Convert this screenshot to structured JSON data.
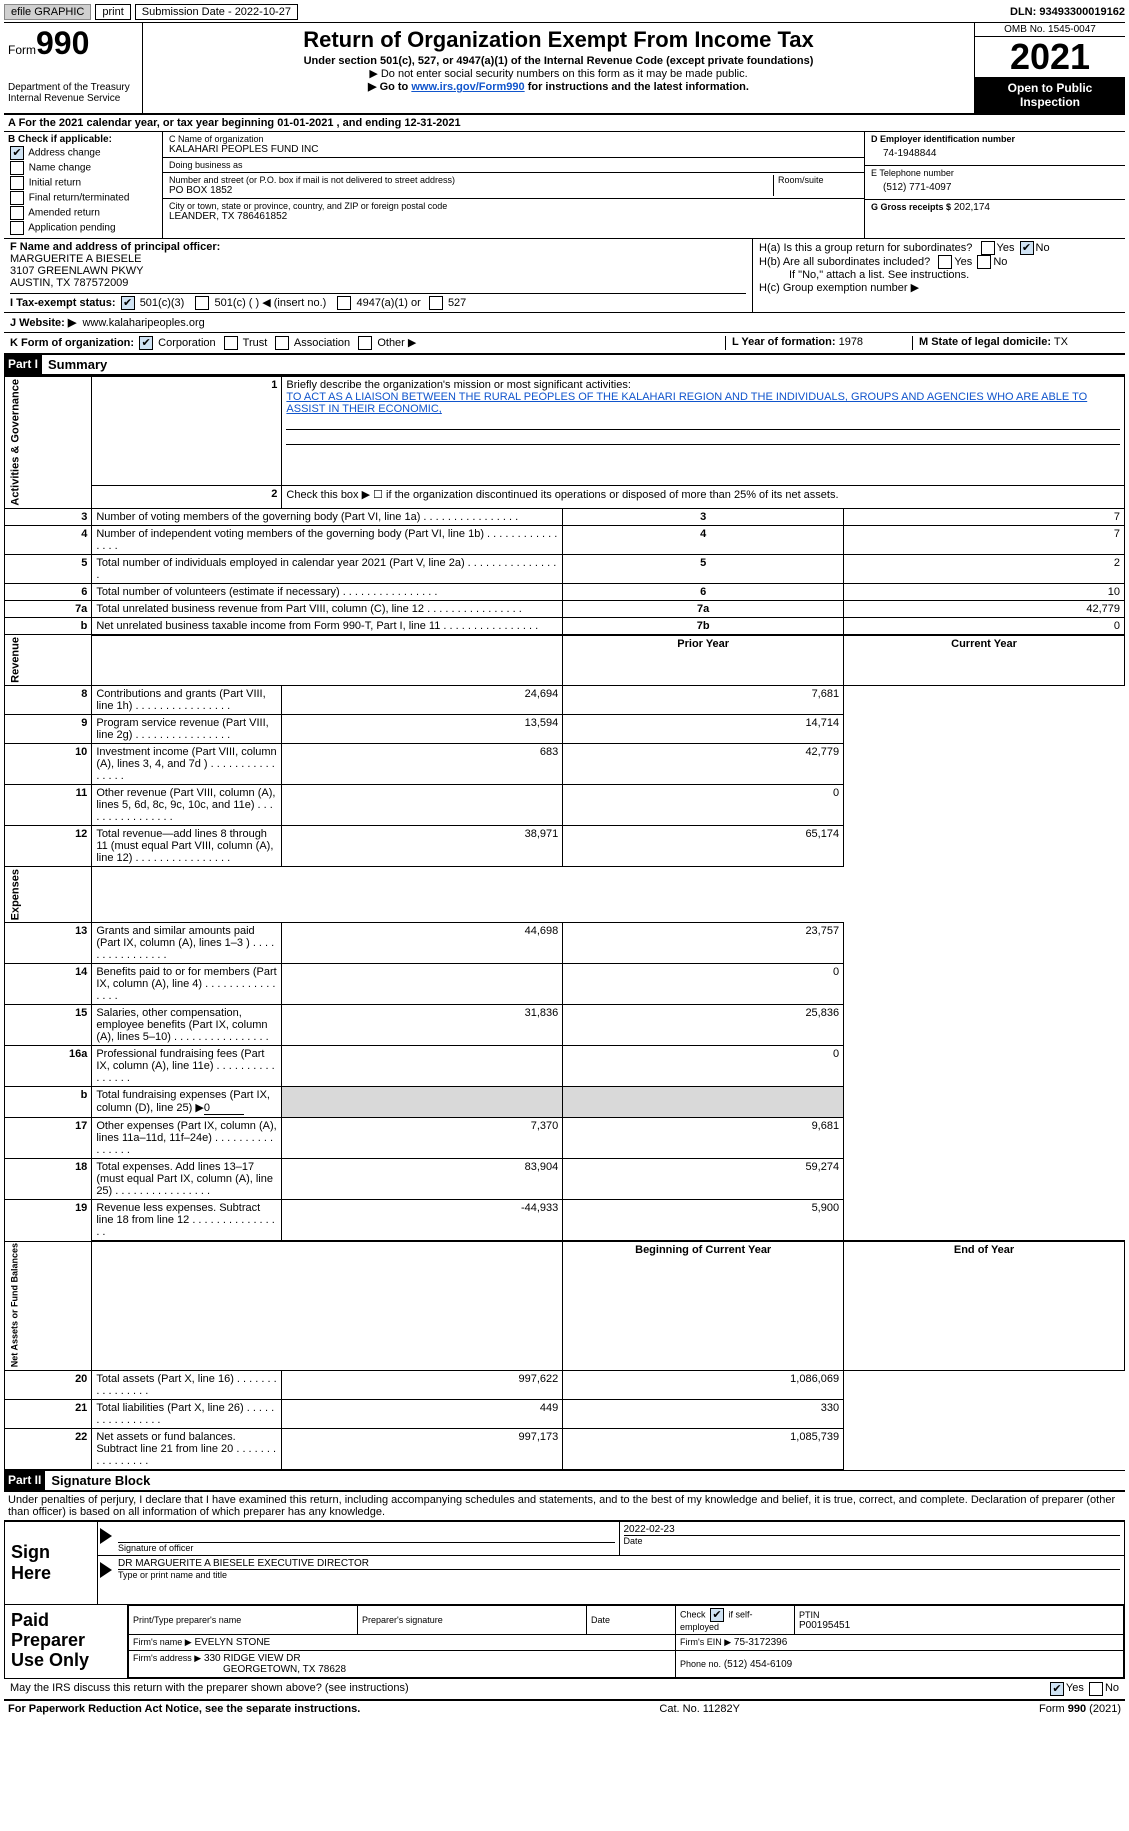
{
  "topbar": {
    "efile_label": "efile GRAPHIC",
    "print_btn": "print",
    "submission_label": "Submission Date - 2022-10-27",
    "dln_label": "DLN: 93493300019162"
  },
  "header": {
    "form_prefix": "Form",
    "form_number": "990",
    "dept": "Department of the Treasury",
    "irs": "Internal Revenue Service",
    "title": "Return of Organization Exempt From Income Tax",
    "subtitle": "Under section 501(c), 527, or 4947(a)(1) of the Internal Revenue Code (except private foundations)",
    "note1": "▶ Do not enter social security numbers on this form as it may be made public.",
    "note2_pre": "▶ Go to ",
    "note2_link": "www.irs.gov/Form990",
    "note2_post": " for instructions and the latest information.",
    "omb": "OMB No. 1545-0047",
    "year": "2021",
    "open_public": "Open to Public Inspection"
  },
  "row_a": "A For the 2021 calendar year, or tax year beginning 01-01-2021   , and ending 12-31-2021",
  "col_b": {
    "header": "B Check if applicable:",
    "opts": {
      "address_change": "Address change",
      "name_change": "Name change",
      "initial_return": "Initial return",
      "final_return": "Final return/terminated",
      "amended_return": "Amended return",
      "application_pending": "Application pending"
    }
  },
  "col_c": {
    "name_label": "C Name of organization",
    "name": "KALAHARI PEOPLES FUND INC",
    "dba_label": "Doing business as",
    "dba": "",
    "street_label": "Number and street (or P.O. box if mail is not delivered to street address)",
    "room_label": "Room/suite",
    "street": "PO BOX 1852",
    "city_label": "City or town, state or province, country, and ZIP or foreign postal code",
    "city": "LEANDER, TX  786461852"
  },
  "col_d": {
    "ein_label": "D Employer identification number",
    "ein": "74-1948844",
    "phone_label": "E Telephone number",
    "phone": "(512) 771-4097",
    "gross_label": "G Gross receipts $",
    "gross": "202,174"
  },
  "section_f": {
    "label": "F Name and address of principal officer:",
    "name": "MARGUERITE A BIESELE",
    "addr1": "3107 GREENLAWN PKWY",
    "addr2": "AUSTIN, TX  787572009"
  },
  "section_h": {
    "ha": "H(a)  Is this a group return for subordinates?",
    "hb": "H(b)  Are all subordinates included?",
    "hb_note": "If \"No,\" attach a list. See instructions.",
    "hc": "H(c)  Group exemption number ▶",
    "yes": "Yes",
    "no": "No"
  },
  "row_i": {
    "label": "I    Tax-exempt status:",
    "opt1": "501(c)(3)",
    "opt2": "501(c) (   ) ◀ (insert no.)",
    "opt3": "4947(a)(1) or",
    "opt4": "527"
  },
  "row_j": {
    "label": "J   Website: ▶",
    "value": "www.kalaharipeoples.org"
  },
  "row_k": {
    "label": "K Form of organization:",
    "corp": "Corporation",
    "trust": "Trust",
    "assoc": "Association",
    "other": "Other ▶",
    "l_label": "L Year of formation:",
    "l_value": "1978",
    "m_label": "M State of legal domicile:",
    "m_value": "TX"
  },
  "part1": {
    "label": "Part I",
    "title": "Summary"
  },
  "summary": {
    "line1_label": "Briefly describe the organization's mission or most significant activities:",
    "line1_text": "TO ACT AS A LIAISON BETWEEN THE RURAL PEOPLES OF THE KALAHARI REGION AND THE INDIVIDUALS, GROUPS AND AGENCIES WHO ARE ABLE TO ASSIST IN THEIR ECONOMIC,",
    "line2": "Check this box ▶ ☐ if the organization discontinued its operations or disposed of more than 25% of its net assets.",
    "rows_ag": [
      {
        "n": "3",
        "desc": "Number of voting members of the governing body (Part VI, line 1a)",
        "box": "3",
        "val": "7"
      },
      {
        "n": "4",
        "desc": "Number of independent voting members of the governing body (Part VI, line 1b)",
        "box": "4",
        "val": "7"
      },
      {
        "n": "5",
        "desc": "Total number of individuals employed in calendar year 2021 (Part V, line 2a)",
        "box": "5",
        "val": "2"
      },
      {
        "n": "6",
        "desc": "Total number of volunteers (estimate if necessary)",
        "box": "6",
        "val": "10"
      },
      {
        "n": "7a",
        "desc": "Total unrelated business revenue from Part VIII, column (C), line 12",
        "box": "7a",
        "val": "42,779"
      },
      {
        "n": "b",
        "desc": "Net unrelated business taxable income from Form 990-T, Part I, line 11",
        "box": "7b",
        "val": "0"
      }
    ],
    "prior_year_hdr": "Prior Year",
    "current_year_hdr": "Current Year",
    "rows_rev": [
      {
        "n": "8",
        "desc": "Contributions and grants (Part VIII, line 1h)",
        "py": "24,694",
        "cy": "7,681"
      },
      {
        "n": "9",
        "desc": "Program service revenue (Part VIII, line 2g)",
        "py": "13,594",
        "cy": "14,714"
      },
      {
        "n": "10",
        "desc": "Investment income (Part VIII, column (A), lines 3, 4, and 7d )",
        "py": "683",
        "cy": "42,779"
      },
      {
        "n": "11",
        "desc": "Other revenue (Part VIII, column (A), lines 5, 6d, 8c, 9c, 10c, and 11e)",
        "py": "",
        "cy": "0"
      },
      {
        "n": "12",
        "desc": "Total revenue—add lines 8 through 11 (must equal Part VIII, column (A), line 12)",
        "py": "38,971",
        "cy": "65,174"
      }
    ],
    "rows_exp": [
      {
        "n": "13",
        "desc": "Grants and similar amounts paid (Part IX, column (A), lines 1–3 )",
        "py": "44,698",
        "cy": "23,757"
      },
      {
        "n": "14",
        "desc": "Benefits paid to or for members (Part IX, column (A), line 4)",
        "py": "",
        "cy": "0"
      },
      {
        "n": "15",
        "desc": "Salaries, other compensation, employee benefits (Part IX, column (A), lines 5–10)",
        "py": "31,836",
        "cy": "25,836"
      },
      {
        "n": "16a",
        "desc": "Professional fundraising fees (Part IX, column (A), line 11e)",
        "py": "",
        "cy": "0"
      },
      {
        "n": "b",
        "desc": "Total fundraising expenses (Part IX, column (D), line 25) ▶",
        "py": "SHADED",
        "cy": "SHADED",
        "inline": "0"
      },
      {
        "n": "17",
        "desc": "Other expenses (Part IX, column (A), lines 11a–11d, 11f–24e)",
        "py": "7,370",
        "cy": "9,681"
      },
      {
        "n": "18",
        "desc": "Total expenses. Add lines 13–17 (must equal Part IX, column (A), line 25)",
        "py": "83,904",
        "cy": "59,274"
      },
      {
        "n": "19",
        "desc": "Revenue less expenses. Subtract line 18 from line 12",
        "py": "-44,933",
        "cy": "5,900"
      }
    ],
    "begin_hdr": "Beginning of Current Year",
    "end_hdr": "End of Year",
    "rows_na": [
      {
        "n": "20",
        "desc": "Total assets (Part X, line 16)",
        "py": "997,622",
        "cy": "1,086,069"
      },
      {
        "n": "21",
        "desc": "Total liabilities (Part X, line 26)",
        "py": "449",
        "cy": "330"
      },
      {
        "n": "22",
        "desc": "Net assets or fund balances. Subtract line 21 from line 20",
        "py": "997,173",
        "cy": "1,085,739"
      }
    ],
    "vlabels": {
      "ag": "Activities & Governance",
      "rev": "Revenue",
      "exp": "Expenses",
      "na": "Net Assets or Fund Balances"
    }
  },
  "part2": {
    "label": "Part II",
    "title": "Signature Block",
    "penalty": "Under penalties of perjury, I declare that I have examined this return, including accompanying schedules and statements, and to the best of my knowledge and belief, it is true, correct, and complete. Declaration of preparer (other than officer) is based on all information of which preparer has any knowledge."
  },
  "sign": {
    "here": "Sign Here",
    "sig_label": "Signature of officer",
    "date_label": "Date",
    "date": "2022-02-23",
    "name": "DR MARGUERITE A BIESELE  EXECUTIVE DIRECTOR",
    "name_label": "Type or print name and title"
  },
  "prep": {
    "header": "Paid Preparer Use Only",
    "print_name_label": "Print/Type preparer's name",
    "sig_label": "Preparer's signature",
    "date_label": "Date",
    "check_label": "Check ☑ if self-employed",
    "ptin_label": "PTIN",
    "ptin": "P00195451",
    "firm_name_label": "Firm's name    ▶",
    "firm_name": "EVELYN STONE",
    "firm_ein_label": "Firm's EIN ▶",
    "firm_ein": "75-3172396",
    "firm_addr_label": "Firm's address ▶",
    "firm_addr1": "330 RIDGE VIEW DR",
    "firm_addr2": "GEORGETOWN, TX  78628",
    "phone_label": "Phone no.",
    "phone": "(512) 454-6109"
  },
  "footer": {
    "discuss": "May the IRS discuss this return with the preparer shown above? (see instructions)",
    "yes": "Yes",
    "no": "No",
    "paperwork": "For Paperwork Reduction Act Notice, see the separate instructions.",
    "cat": "Cat. No. 11282Y",
    "form": "Form 990 (2021)"
  }
}
